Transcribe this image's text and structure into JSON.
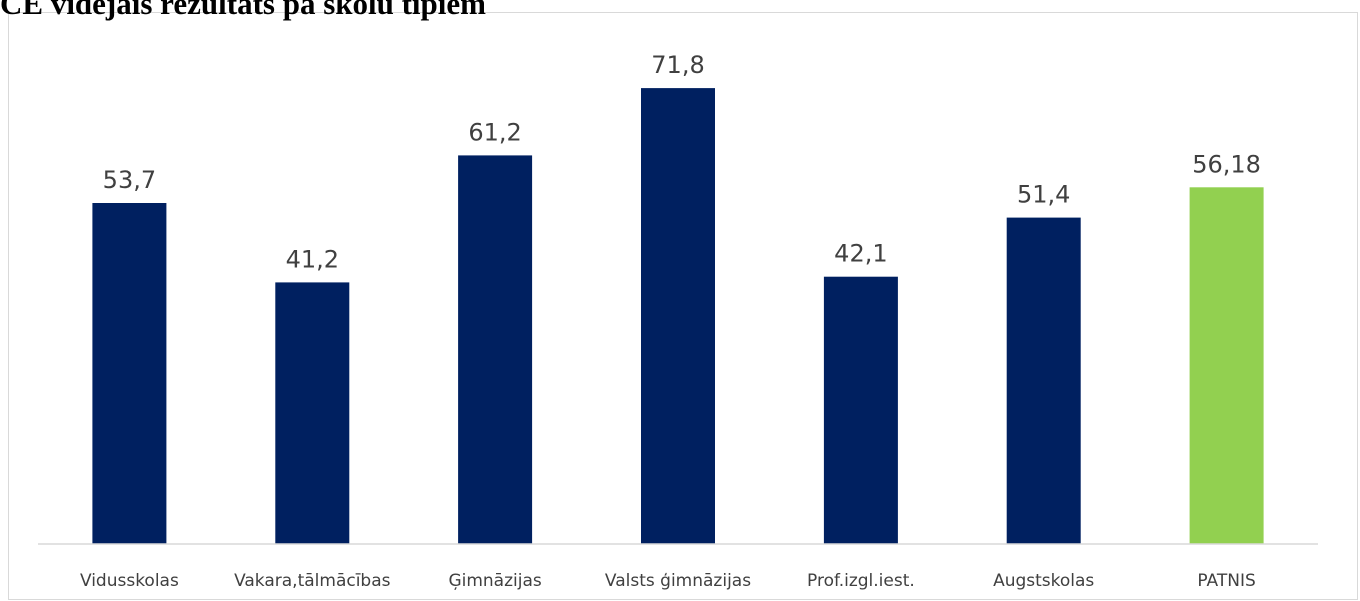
{
  "chart_data": {
    "type": "bar",
    "title": "CE vidējais rezultāts pa skolu tipiem",
    "xlabel": "",
    "ylabel": "",
    "ylim": [
      0,
      80
    ],
    "grid": false,
    "legend": "none",
    "categories": [
      "Vidusskolas",
      "Vakara,tālmācības",
      "Ģimnāzijas",
      "Valsts ģimnāzijas",
      "Prof.izgl.iest.",
      "Augstskolas",
      "PATNIS"
    ],
    "values": [
      53.7,
      41.2,
      61.2,
      71.8,
      42.1,
      51.4,
      56.18
    ],
    "value_labels": [
      "53,7",
      "41,2",
      "61,2",
      "71,8",
      "42,1",
      "51,4",
      "56,18"
    ],
    "colors": {
      "default_bar": "#002060",
      "highlight_bar": "#92d050",
      "axis": "#d9d9d9",
      "text": "#404040"
    },
    "highlight_category": "PATNIS"
  }
}
